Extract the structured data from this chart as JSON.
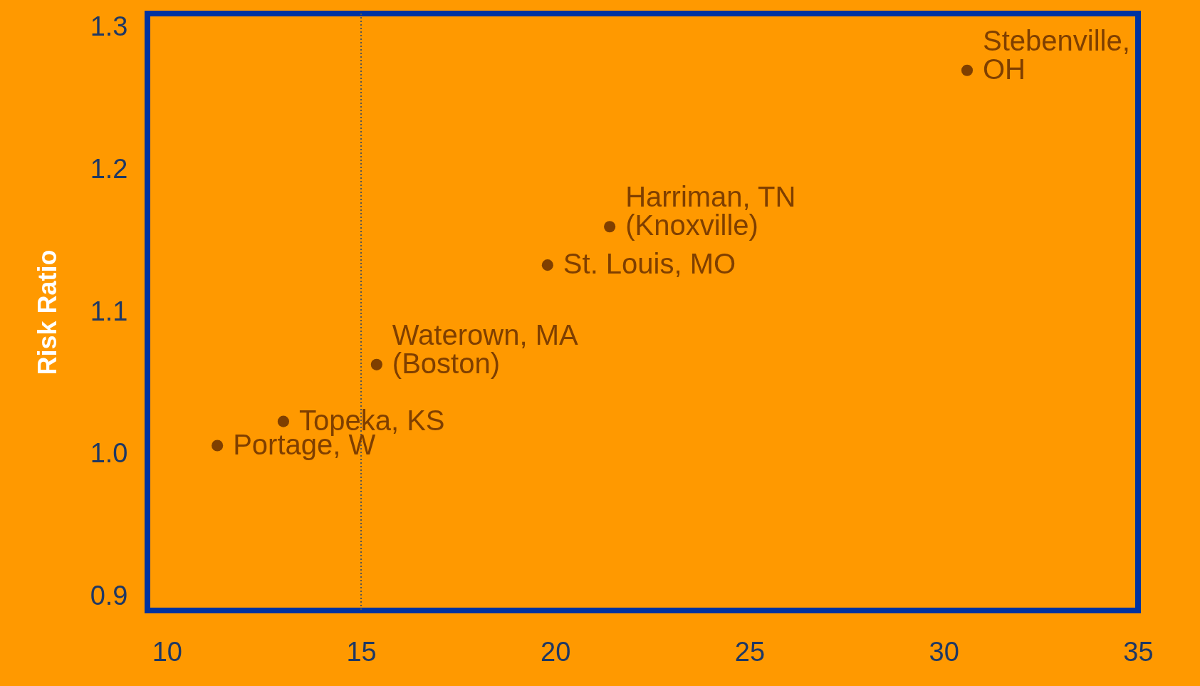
{
  "chart_data": {
    "type": "scatter",
    "ylabel": "Risk Ratio",
    "x": [
      11.3,
      13.0,
      15.4,
      19.8,
      21.4,
      30.6
    ],
    "series": [
      {
        "color": "#7f3f00",
        "values": [
          1.006,
          1.023,
          1.063,
          1.133,
          1.16,
          1.27
        ]
      }
    ],
    "xlim": [
      9.5,
      35
    ],
    "xticks": [
      10,
      15,
      20,
      25,
      30,
      35
    ],
    "ylim": [
      0.89,
      1.31
    ],
    "yticks": [
      0.9,
      {
        "value": 1,
        "label": "1.0"
      },
      1.1,
      1.2,
      1.3
    ],
    "ref_lines": [
      {
        "axis": "x",
        "value": 15,
        "color": "#555555",
        "line_style": "dotted"
      }
    ],
    "marker": "circle",
    "grid": false,
    "annotations": [
      {
        "text": "Portage, W",
        "x": 11.3,
        "y": 1.006
      },
      {
        "text": "Topeka, KS",
        "x": 13.0,
        "y": 1.023
      },
      {
        "text": "Waterown, MA\n(Boston)",
        "x": 15.4,
        "y": 1.063
      },
      {
        "text": "St. Louis, MO",
        "x": 19.8,
        "y": 1.133
      },
      {
        "text": "Harriman, TN\n(Knoxville)",
        "x": 21.4,
        "y": 1.16
      },
      {
        "text": "Stebenville,\nOH",
        "x": 30.6,
        "y": 1.27
      }
    ]
  }
}
